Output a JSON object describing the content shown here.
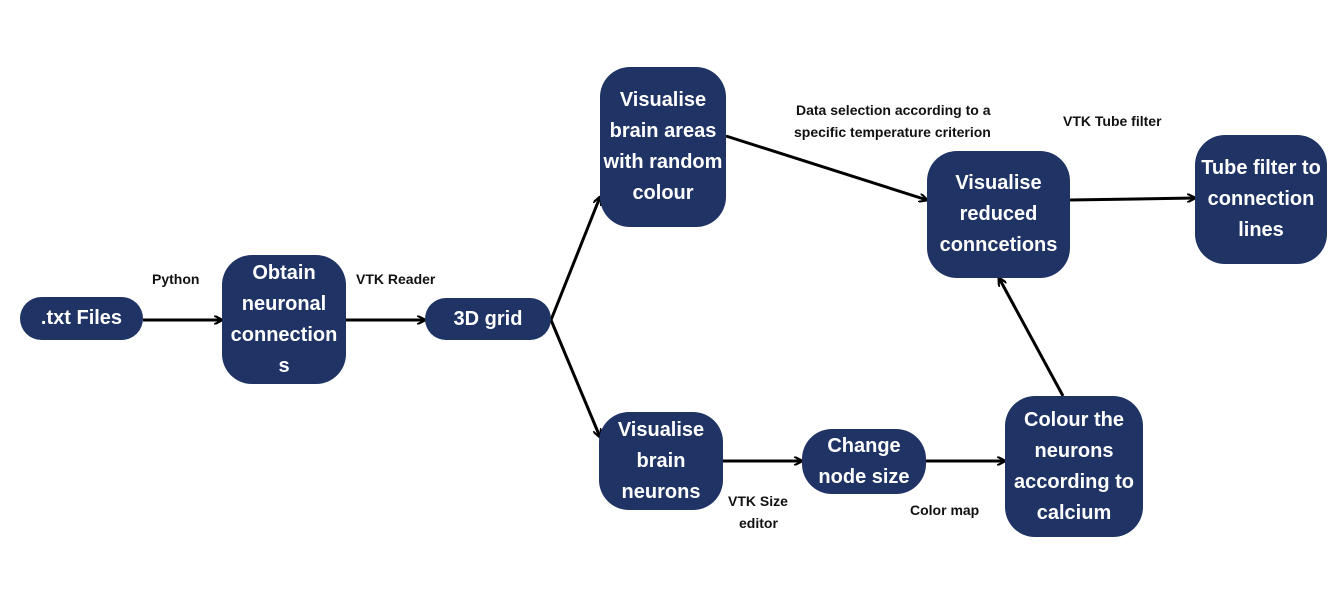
{
  "colors": {
    "node_fill": "#1f3364",
    "node_text": "#ffffff",
    "arrow": "#000000",
    "label_text": "#111111"
  },
  "nodes": {
    "txt_files": ".txt Files",
    "obtain_connections": "Obtain neuronal connection s",
    "grid_3d": "3D grid",
    "visualise_areas": "Visualise brain areas with random colour",
    "visualise_neurons": "Visualise brain neurons",
    "change_node_size": "Change node size",
    "colour_neurons": "Colour the neurons according to calcium",
    "visualise_reduced": "Visualise reduced conncetions",
    "tube_filter": "Tube filter to connection lines"
  },
  "edge_labels": {
    "python": "Python",
    "vtk_reader": "VTK Reader",
    "data_selection_1": "Data selection according to a",
    "data_selection_2": "specific temperature criterion",
    "vtk_tube_filter": "VTK Tube filter",
    "vtk_size_editor_1": "VTK Size",
    "vtk_size_editor_2": "editor",
    "color_map": "Color map"
  }
}
